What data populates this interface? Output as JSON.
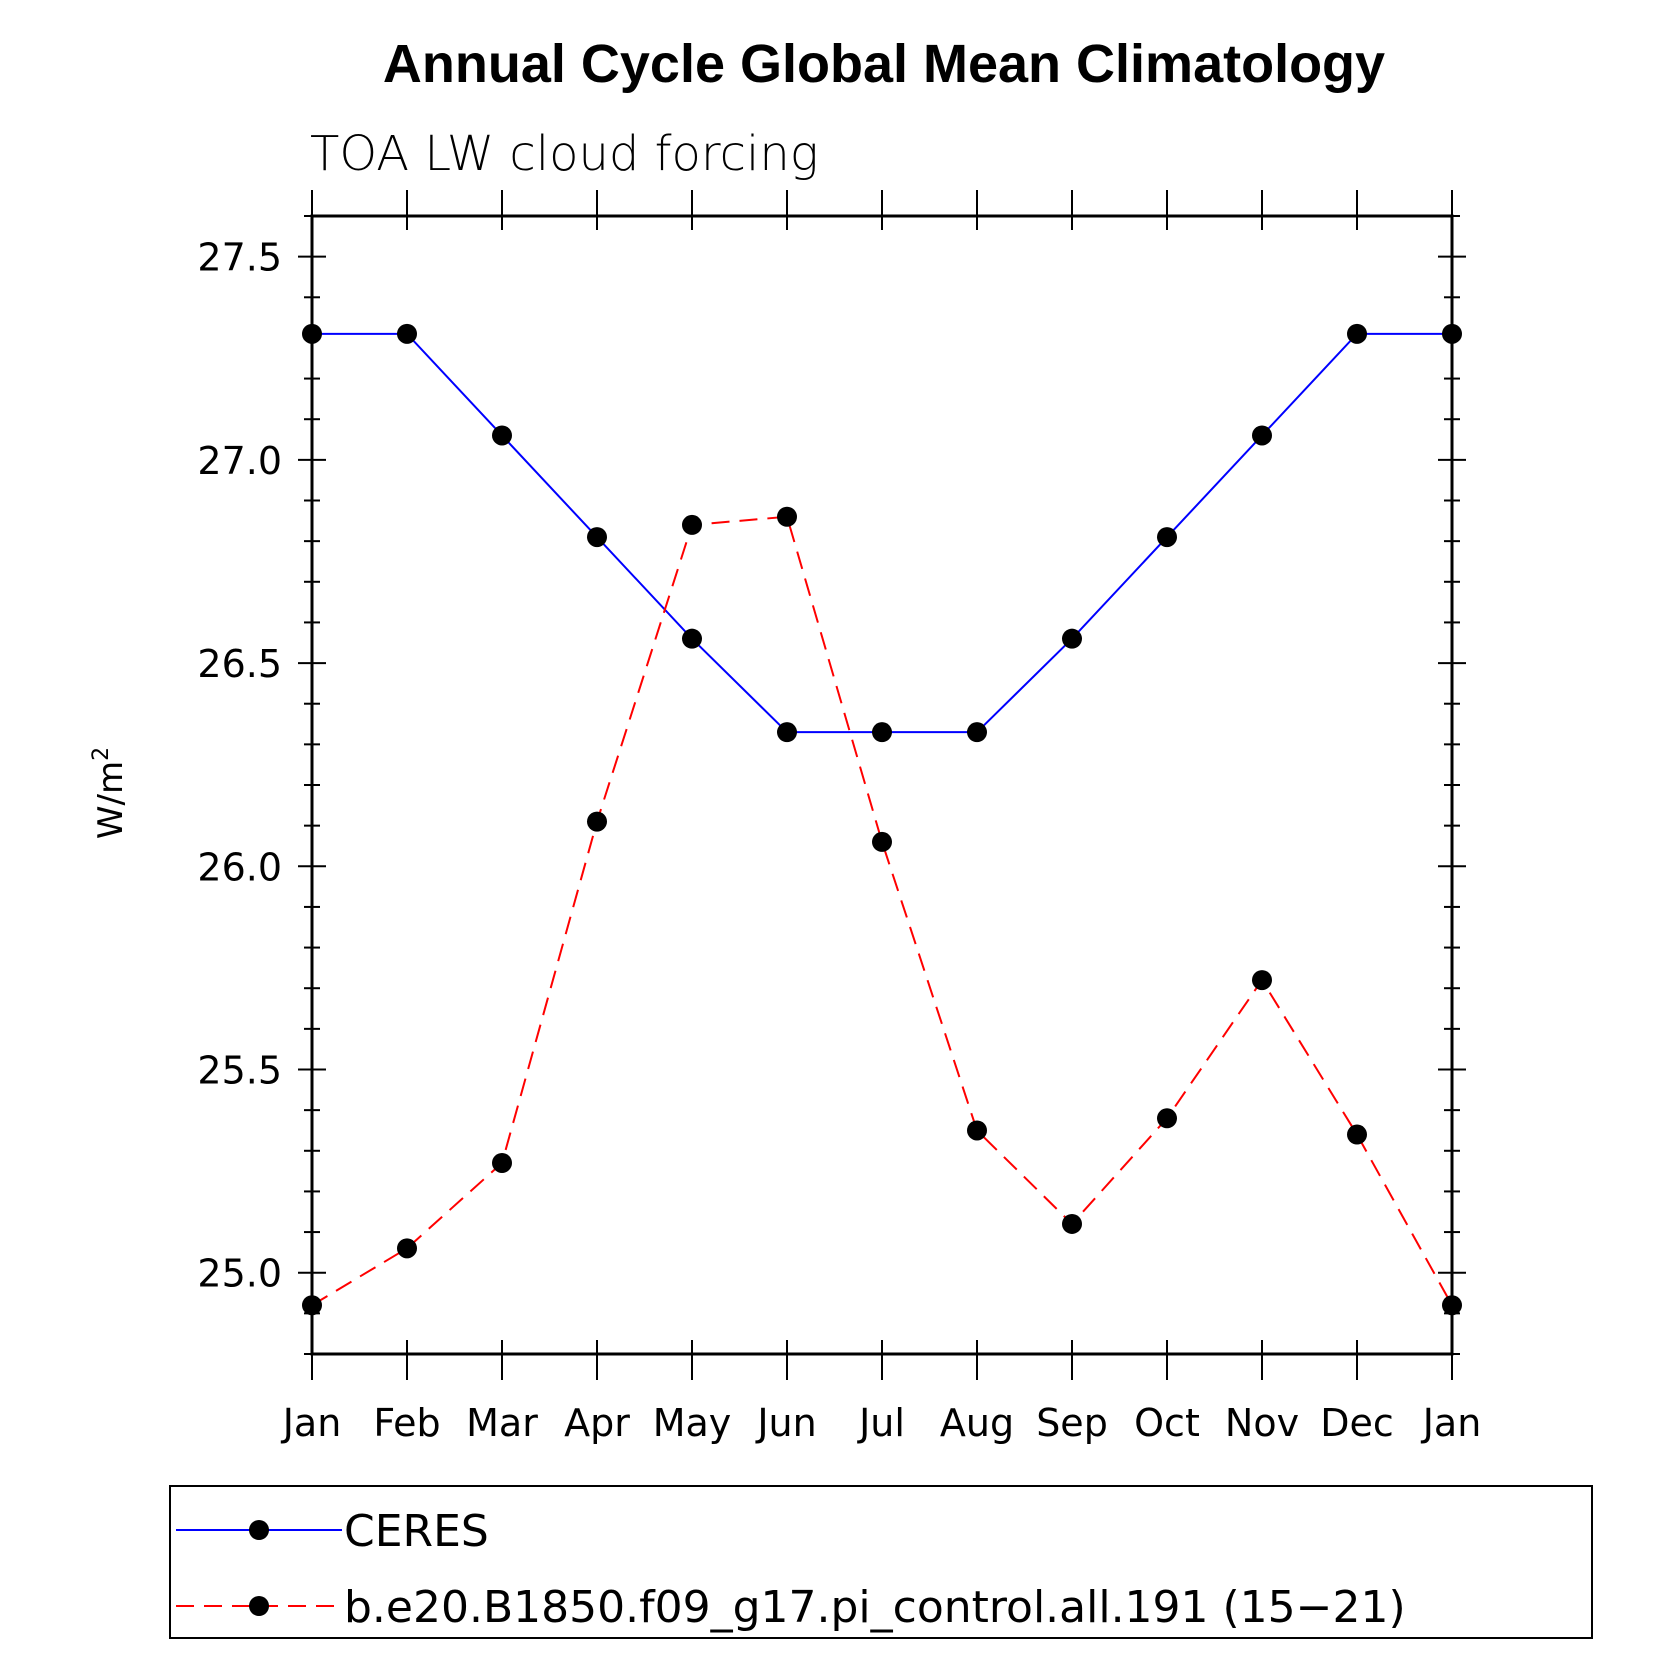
{
  "chart_data": {
    "type": "line",
    "title": "Annual Cycle Global Mean Climatology",
    "subtitle": "TOA LW cloud forcing",
    "xlabel": "",
    "ylabel": "W/m",
    "ylabel_superscript": "2",
    "categories": [
      "Jan",
      "Feb",
      "Mar",
      "Apr",
      "May",
      "Jun",
      "Jul",
      "Aug",
      "Sep",
      "Oct",
      "Nov",
      "Dec",
      "Jan"
    ],
    "ylim": [
      24.8,
      27.6
    ],
    "yticks": [
      25.0,
      25.5,
      26.0,
      26.5,
      27.0,
      27.5
    ],
    "ytick_labels": [
      "25.0",
      "25.5",
      "26.0",
      "26.5",
      "27.0",
      "27.5"
    ],
    "grid": false,
    "legend_position": "bottom",
    "series": [
      {
        "name": "CERES",
        "color": "#0000ff",
        "line_style": "solid",
        "marker": "filled-circle",
        "values": [
          27.31,
          27.31,
          27.06,
          26.81,
          26.56,
          26.33,
          26.33,
          26.33,
          26.56,
          26.81,
          27.06,
          27.31,
          27.31
        ]
      },
      {
        "name": "b.e20.B1850.f09_g17.pi_control.all.191 (15−21)",
        "color": "#ff0000",
        "line_style": "dashed",
        "marker": "filled-circle",
        "values": [
          24.92,
          25.06,
          25.27,
          26.11,
          26.84,
          26.86,
          26.06,
          25.35,
          25.12,
          25.38,
          25.72,
          25.34,
          24.92
        ]
      }
    ]
  }
}
